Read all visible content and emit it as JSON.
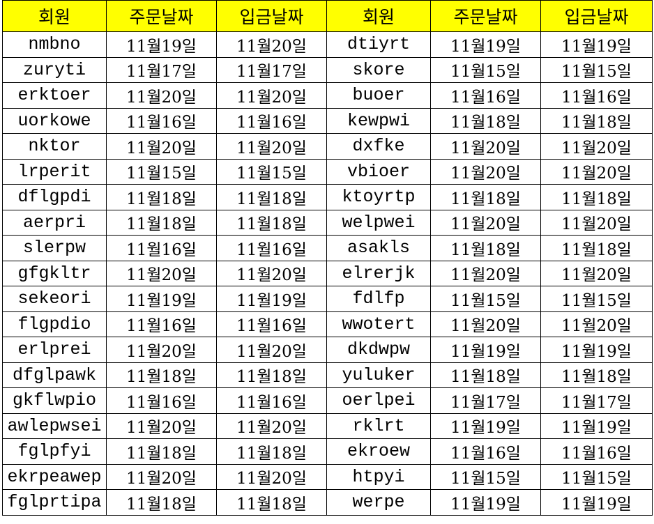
{
  "colors": {
    "header_bg": "#ffff00",
    "grid": "#000000"
  },
  "headers": [
    "회원",
    "주문날짜",
    "입금날짜",
    "회원",
    "주문날짜",
    "입금날짜"
  ],
  "rows": [
    [
      "nmbno",
      "11월19일",
      "11월20일",
      "dtiyrt",
      "11월19일",
      "11월19일"
    ],
    [
      "zuryti",
      "11월17일",
      "11월17일",
      "skore",
      "11월15일",
      "11월15일"
    ],
    [
      "erktoer",
      "11월20일",
      "11월20일",
      "buoer",
      "11월16일",
      "11월16일"
    ],
    [
      "uorkowe",
      "11월16일",
      "11월16일",
      "kewpwi",
      "11월18일",
      "11월18일"
    ],
    [
      "nktor",
      "11월20일",
      "11월20일",
      "dxfke",
      "11월20일",
      "11월20일"
    ],
    [
      "lrperit",
      "11월15일",
      "11월15일",
      "vbioer",
      "11월20일",
      "11월20일"
    ],
    [
      "dflgpdi",
      "11월18일",
      "11월18일",
      "ktoyrtp",
      "11월18일",
      "11월18일"
    ],
    [
      "aerpri",
      "11월18일",
      "11월18일",
      "welpwei",
      "11월20일",
      "11월20일"
    ],
    [
      "slerpw",
      "11월16일",
      "11월16일",
      "asakls",
      "11월18일",
      "11월18일"
    ],
    [
      "gfgkltr",
      "11월20일",
      "11월20일",
      "elrerjk",
      "11월20일",
      "11월20일"
    ],
    [
      "sekeori",
      "11월19일",
      "11월19일",
      "fdlfp",
      "11월15일",
      "11월15일"
    ],
    [
      "flgpdio",
      "11월16일",
      "11월16일",
      "wwotert",
      "11월20일",
      "11월20일"
    ],
    [
      "erlprei",
      "11월20일",
      "11월20일",
      "dkdwpw",
      "11월19일",
      "11월19일"
    ],
    [
      "dfglpawk",
      "11월18일",
      "11월18일",
      "yuluker",
      "11월18일",
      "11월18일"
    ],
    [
      "gkflwpio",
      "11월16일",
      "11월16일",
      "oerlpei",
      "11월17일",
      "11월17일"
    ],
    [
      "awlepwsei",
      "11월20일",
      "11월20일",
      "rklrt",
      "11월19일",
      "11월19일"
    ],
    [
      "fglpfyi",
      "11월18일",
      "11월18일",
      "ekroew",
      "11월16일",
      "11월16일"
    ],
    [
      "ekrpeawep",
      "11월20일",
      "11월20일",
      "htpyi",
      "11월15일",
      "11월15일"
    ],
    [
      "fglprtipa",
      "11월18일",
      "11월18일",
      "werpe",
      "11월19일",
      "11월19일"
    ]
  ]
}
